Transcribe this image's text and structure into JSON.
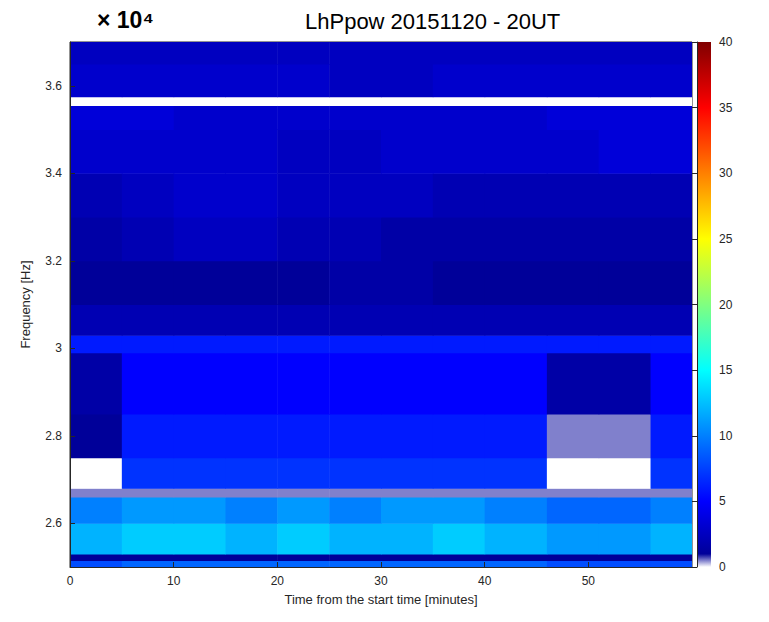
{
  "chart_data": {
    "type": "heatmap",
    "title": "LhPpow 20151120 - 20UT",
    "x_label": "Time from the start time [minutes]",
    "y_label": "Frequency [Hz]",
    "xlim": [
      0,
      60
    ],
    "xticks": [
      0,
      10,
      20,
      30,
      40,
      50
    ],
    "ylim": [
      2.5,
      3.7
    ],
    "yticks": [
      2.6,
      2.8,
      3,
      3.2,
      3.4,
      3.6
    ],
    "grid": false,
    "time_edges": [
      0,
      5,
      10,
      15,
      20,
      25,
      30,
      35,
      40,
      46,
      51,
      56,
      60
    ],
    "freq_edges": [
      2.5,
      2.515,
      2.53,
      2.6,
      2.66,
      2.68,
      2.75,
      2.85,
      2.99,
      3.03,
      3.1,
      3.2,
      3.3,
      3.4,
      3.5,
      3.555,
      3.575,
      3.65,
      3.7
    ],
    "cells": [
      [
        8,
        9,
        9,
        9,
        9,
        9,
        9,
        9,
        9,
        8,
        8,
        8
      ],
      [
        1,
        1,
        1,
        1,
        1,
        1,
        1,
        1,
        1,
        1,
        1,
        1
      ],
      [
        12,
        13,
        13,
        12,
        13,
        12,
        12,
        13,
        12,
        11,
        11,
        12
      ],
      [
        10,
        11,
        11,
        10,
        11,
        10,
        11,
        11,
        10,
        9,
        9,
        10
      ],
      [
        0.5,
        0.5,
        0.5,
        0.5,
        0.5,
        0.5,
        0.5,
        0.5,
        0.5,
        0.5,
        0.5,
        0.5
      ],
      [
        0,
        7,
        7,
        7,
        7,
        7,
        7,
        7,
        7,
        0,
        0,
        7
      ],
      [
        1,
        6,
        6,
        6,
        6,
        6,
        6,
        6,
        6,
        0.5,
        0.5,
        6
      ],
      [
        1.5,
        5,
        5,
        5,
        5,
        5,
        5,
        5,
        5,
        1.5,
        1.5,
        5
      ],
      [
        6,
        6,
        6,
        6,
        6,
        6,
        6,
        6,
        6,
        6,
        6,
        6
      ],
      [
        2,
        2,
        2,
        2,
        2,
        2,
        2,
        2,
        2,
        2,
        2,
        2
      ],
      [
        1,
        1,
        1,
        1,
        1,
        1.5,
        1.5,
        1,
        1,
        1,
        1,
        1
      ],
      [
        1.5,
        2,
        2.5,
        2.5,
        2,
        2,
        1.5,
        1.5,
        1.5,
        1.5,
        1.5,
        1.5
      ],
      [
        2,
        2.5,
        3,
        3,
        2.5,
        2.5,
        2.5,
        2,
        2,
        2,
        2,
        2
      ],
      [
        3,
        3,
        3,
        3,
        2.5,
        2.5,
        3,
        3,
        3,
        3,
        3.5,
        3.5
      ],
      [
        3.5,
        3.5,
        3,
        3,
        3,
        3,
        3,
        3,
        3,
        3.5,
        3.5,
        3.5
      ],
      [
        0,
        0,
        0,
        0,
        0,
        0,
        0,
        0,
        0,
        0,
        0,
        0
      ],
      [
        3,
        3,
        3,
        3,
        3,
        2.5,
        2.5,
        3,
        3,
        3,
        3,
        3
      ],
      [
        2.5,
        2.5,
        2.5,
        2.5,
        2.5,
        2.5,
        2.5,
        2.5,
        2.5,
        2.5,
        2.5,
        2.5
      ]
    ],
    "colorbar": {
      "label": "× 10⁴",
      "range": [
        0,
        40
      ],
      "ticks": [
        0,
        5,
        10,
        15,
        20,
        25,
        30,
        35,
        40
      ]
    }
  }
}
